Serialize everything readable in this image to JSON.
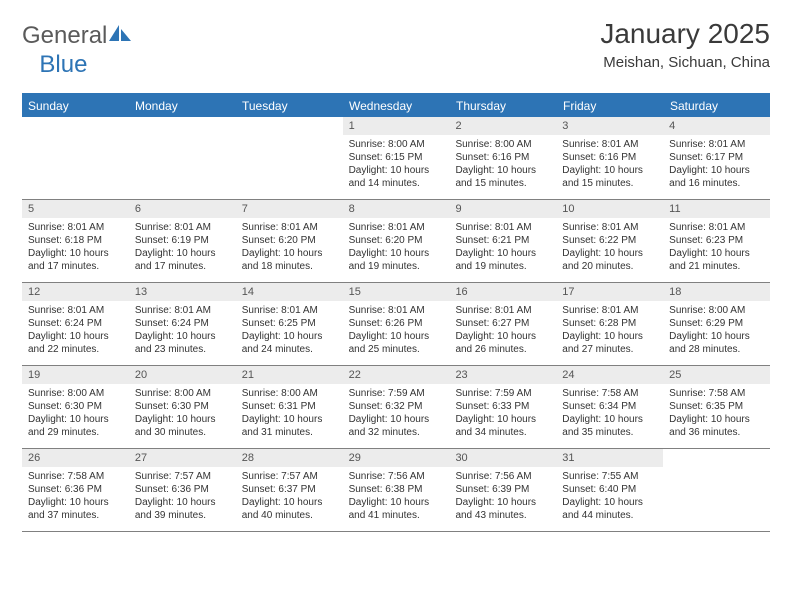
{
  "brand": {
    "part1": "General",
    "part2": "Blue"
  },
  "title": "January 2025",
  "location": "Meishan, Sichuan, China",
  "colors": {
    "header_bg": "#2d74b5",
    "header_text": "#ffffff",
    "daynum_bg": "#ececec",
    "daynum_text": "#555555",
    "body_text": "#333333",
    "rule": "#808080",
    "page_bg": "#ffffff"
  },
  "typography": {
    "title_fontsize": 28,
    "location_fontsize": 15,
    "dow_fontsize": 12,
    "daynum_fontsize": 11,
    "cell_fontsize": 10
  },
  "dow": [
    "Sunday",
    "Monday",
    "Tuesday",
    "Wednesday",
    "Thursday",
    "Friday",
    "Saturday"
  ],
  "labels": {
    "sunrise": "Sunrise:",
    "sunset": "Sunset:",
    "daylight": "Daylight:"
  },
  "weeks": [
    [
      null,
      null,
      null,
      {
        "n": "1",
        "sunrise": "8:00 AM",
        "sunset": "6:15 PM",
        "daylight": "10 hours and 14 minutes."
      },
      {
        "n": "2",
        "sunrise": "8:00 AM",
        "sunset": "6:16 PM",
        "daylight": "10 hours and 15 minutes."
      },
      {
        "n": "3",
        "sunrise": "8:01 AM",
        "sunset": "6:16 PM",
        "daylight": "10 hours and 15 minutes."
      },
      {
        "n": "4",
        "sunrise": "8:01 AM",
        "sunset": "6:17 PM",
        "daylight": "10 hours and 16 minutes."
      }
    ],
    [
      {
        "n": "5",
        "sunrise": "8:01 AM",
        "sunset": "6:18 PM",
        "daylight": "10 hours and 17 minutes."
      },
      {
        "n": "6",
        "sunrise": "8:01 AM",
        "sunset": "6:19 PM",
        "daylight": "10 hours and 17 minutes."
      },
      {
        "n": "7",
        "sunrise": "8:01 AM",
        "sunset": "6:20 PM",
        "daylight": "10 hours and 18 minutes."
      },
      {
        "n": "8",
        "sunrise": "8:01 AM",
        "sunset": "6:20 PM",
        "daylight": "10 hours and 19 minutes."
      },
      {
        "n": "9",
        "sunrise": "8:01 AM",
        "sunset": "6:21 PM",
        "daylight": "10 hours and 19 minutes."
      },
      {
        "n": "10",
        "sunrise": "8:01 AM",
        "sunset": "6:22 PM",
        "daylight": "10 hours and 20 minutes."
      },
      {
        "n": "11",
        "sunrise": "8:01 AM",
        "sunset": "6:23 PM",
        "daylight": "10 hours and 21 minutes."
      }
    ],
    [
      {
        "n": "12",
        "sunrise": "8:01 AM",
        "sunset": "6:24 PM",
        "daylight": "10 hours and 22 minutes."
      },
      {
        "n": "13",
        "sunrise": "8:01 AM",
        "sunset": "6:24 PM",
        "daylight": "10 hours and 23 minutes."
      },
      {
        "n": "14",
        "sunrise": "8:01 AM",
        "sunset": "6:25 PM",
        "daylight": "10 hours and 24 minutes."
      },
      {
        "n": "15",
        "sunrise": "8:01 AM",
        "sunset": "6:26 PM",
        "daylight": "10 hours and 25 minutes."
      },
      {
        "n": "16",
        "sunrise": "8:01 AM",
        "sunset": "6:27 PM",
        "daylight": "10 hours and 26 minutes."
      },
      {
        "n": "17",
        "sunrise": "8:01 AM",
        "sunset": "6:28 PM",
        "daylight": "10 hours and 27 minutes."
      },
      {
        "n": "18",
        "sunrise": "8:00 AM",
        "sunset": "6:29 PM",
        "daylight": "10 hours and 28 minutes."
      }
    ],
    [
      {
        "n": "19",
        "sunrise": "8:00 AM",
        "sunset": "6:30 PM",
        "daylight": "10 hours and 29 minutes."
      },
      {
        "n": "20",
        "sunrise": "8:00 AM",
        "sunset": "6:30 PM",
        "daylight": "10 hours and 30 minutes."
      },
      {
        "n": "21",
        "sunrise": "8:00 AM",
        "sunset": "6:31 PM",
        "daylight": "10 hours and 31 minutes."
      },
      {
        "n": "22",
        "sunrise": "7:59 AM",
        "sunset": "6:32 PM",
        "daylight": "10 hours and 32 minutes."
      },
      {
        "n": "23",
        "sunrise": "7:59 AM",
        "sunset": "6:33 PM",
        "daylight": "10 hours and 34 minutes."
      },
      {
        "n": "24",
        "sunrise": "7:58 AM",
        "sunset": "6:34 PM",
        "daylight": "10 hours and 35 minutes."
      },
      {
        "n": "25",
        "sunrise": "7:58 AM",
        "sunset": "6:35 PM",
        "daylight": "10 hours and 36 minutes."
      }
    ],
    [
      {
        "n": "26",
        "sunrise": "7:58 AM",
        "sunset": "6:36 PM",
        "daylight": "10 hours and 37 minutes."
      },
      {
        "n": "27",
        "sunrise": "7:57 AM",
        "sunset": "6:36 PM",
        "daylight": "10 hours and 39 minutes."
      },
      {
        "n": "28",
        "sunrise": "7:57 AM",
        "sunset": "6:37 PM",
        "daylight": "10 hours and 40 minutes."
      },
      {
        "n": "29",
        "sunrise": "7:56 AM",
        "sunset": "6:38 PM",
        "daylight": "10 hours and 41 minutes."
      },
      {
        "n": "30",
        "sunrise": "7:56 AM",
        "sunset": "6:39 PM",
        "daylight": "10 hours and 43 minutes."
      },
      {
        "n": "31",
        "sunrise": "7:55 AM",
        "sunset": "6:40 PM",
        "daylight": "10 hours and 44 minutes."
      },
      null
    ]
  ]
}
